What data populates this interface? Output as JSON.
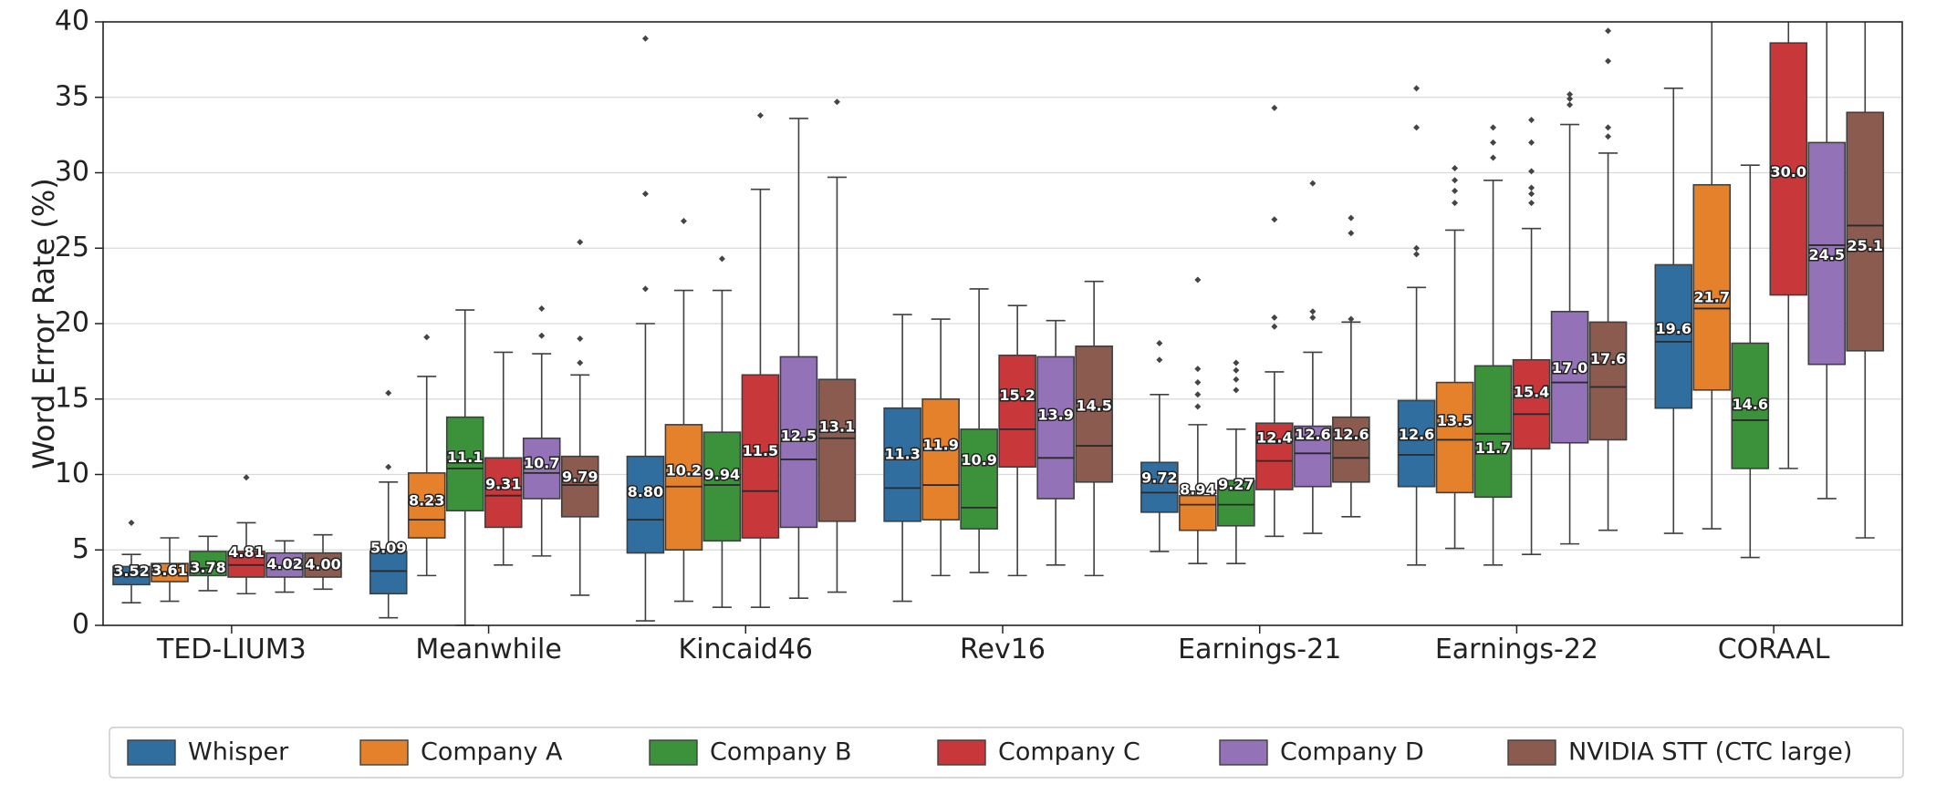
{
  "chart_data": {
    "type": "box",
    "title": "",
    "xlabel": "",
    "ylabel": "Word Error Rate (%)",
    "ylim": [
      0,
      40
    ],
    "yticks": [
      0,
      5,
      10,
      15,
      20,
      25,
      30,
      35,
      40
    ],
    "grid": "horizontal",
    "legend_position": "bottom",
    "categories": [
      "TED-LIUM3",
      "Meanwhile",
      "Kincaid46",
      "Rev16",
      "Earnings-21",
      "Earnings-22",
      "CORAAL"
    ],
    "series": [
      {
        "name": "Whisper",
        "color": "#2f6e9e",
        "boxes": [
          {
            "q1": 2.7,
            "median": 3.3,
            "q3": 3.9,
            "wlo": 1.5,
            "whi": 4.7,
            "label": "3.52",
            "outliers": [
              6.8
            ]
          },
          {
            "q1": 2.1,
            "median": 3.6,
            "q3": 4.9,
            "wlo": 0.5,
            "whi": 9.5,
            "label": "5.09",
            "outliers": [
              10.5,
              15.4
            ]
          },
          {
            "q1": 4.8,
            "median": 7.0,
            "q3": 11.2,
            "wlo": 0.3,
            "whi": 20.0,
            "label": "8.80",
            "outliers": [
              22.3,
              28.6,
              38.9
            ]
          },
          {
            "q1": 6.9,
            "median": 9.1,
            "q3": 14.4,
            "wlo": 1.6,
            "whi": 20.6,
            "label": "11.3",
            "outliers": []
          },
          {
            "q1": 7.5,
            "median": 8.8,
            "q3": 10.8,
            "wlo": 4.9,
            "whi": 15.3,
            "label": "9.72",
            "outliers": [
              17.6,
              18.7
            ]
          },
          {
            "q1": 9.2,
            "median": 11.3,
            "q3": 14.9,
            "wlo": 4.0,
            "whi": 22.4,
            "label": "12.6",
            "outliers": [
              24.6,
              25.0,
              33.0,
              35.6
            ]
          },
          {
            "q1": 14.4,
            "median": 18.8,
            "q3": 23.9,
            "wlo": 6.1,
            "whi": 35.6,
            "label": "19.6",
            "outliers": []
          }
        ]
      },
      {
        "name": "Company A",
        "color": "#e5812b",
        "boxes": [
          {
            "q1": 2.9,
            "median": 3.4,
            "q3": 4.1,
            "wlo": 1.6,
            "whi": 5.8,
            "label": "3.61",
            "outliers": []
          },
          {
            "q1": 5.8,
            "median": 7.0,
            "q3": 10.1,
            "wlo": 3.3,
            "whi": 16.5,
            "label": "8.23",
            "outliers": [
              19.1
            ]
          },
          {
            "q1": 5.0,
            "median": 9.2,
            "q3": 13.3,
            "wlo": 1.6,
            "whi": 22.2,
            "label": "10.2",
            "outliers": [
              26.8
            ]
          },
          {
            "q1": 7.0,
            "median": 9.3,
            "q3": 15.0,
            "wlo": 3.3,
            "whi": 20.3,
            "label": "11.9",
            "outliers": []
          },
          {
            "q1": 6.3,
            "median": 8.0,
            "q3": 8.6,
            "wlo": 4.1,
            "whi": 13.3,
            "label": "8.94",
            "outliers": [
              14.5,
              15.3,
              16.1,
              17.0,
              22.9
            ]
          },
          {
            "q1": 8.8,
            "median": 12.3,
            "q3": 16.1,
            "wlo": 5.1,
            "whi": 26.2,
            "label": "13.5",
            "outliers": [
              28.0,
              28.8,
              29.5,
              30.3
            ]
          },
          {
            "q1": 15.6,
            "median": 21.0,
            "q3": 29.2,
            "wlo": 6.4,
            "whi": 40.0,
            "label": "21.7",
            "outliers": []
          }
        ]
      },
      {
        "name": "Company B",
        "color": "#3b923b",
        "boxes": [
          {
            "q1": 3.3,
            "median": 3.8,
            "q3": 4.9,
            "wlo": 2.3,
            "whi": 5.9,
            "label": "3.78",
            "outliers": []
          },
          {
            "q1": 7.6,
            "median": 10.4,
            "q3": 13.8,
            "wlo": 0.0,
            "whi": 20.9,
            "label": "11.1",
            "outliers": []
          },
          {
            "q1": 5.6,
            "median": 9.3,
            "q3": 12.8,
            "wlo": 1.2,
            "whi": 22.2,
            "label": "9.94",
            "outliers": [
              24.3
            ]
          },
          {
            "q1": 6.4,
            "median": 7.8,
            "q3": 13.0,
            "wlo": 3.5,
            "whi": 22.3,
            "label": "10.9",
            "outliers": []
          },
          {
            "q1": 6.6,
            "median": 8.0,
            "q3": 9.6,
            "wlo": 4.1,
            "whi": 13.0,
            "label": "9.27",
            "outliers": [
              15.6,
              16.3,
              16.9,
              17.4
            ]
          },
          {
            "q1": 8.5,
            "median": 12.7,
            "q3": 17.2,
            "wlo": 4.0,
            "whi": 29.5,
            "label": "11.7",
            "outliers": [
              31.0,
              32.0,
              33.0
            ]
          },
          {
            "q1": 10.4,
            "median": 13.6,
            "q3": 18.7,
            "wlo": 4.5,
            "whi": 30.5,
            "label": "14.6",
            "outliers": []
          }
        ]
      },
      {
        "name": "Company C",
        "color": "#c8383a",
        "boxes": [
          {
            "q1": 3.2,
            "median": 4.0,
            "q3": 4.9,
            "wlo": 2.1,
            "whi": 6.8,
            "label": "4.81",
            "outliers": [
              9.8
            ]
          },
          {
            "q1": 6.5,
            "median": 8.6,
            "q3": 11.1,
            "wlo": 4.0,
            "whi": 18.1,
            "label": "9.31",
            "outliers": []
          },
          {
            "q1": 5.8,
            "median": 8.9,
            "q3": 16.6,
            "wlo": 1.2,
            "whi": 28.9,
            "label": "11.5",
            "outliers": [
              33.8
            ]
          },
          {
            "q1": 10.5,
            "median": 13.0,
            "q3": 17.9,
            "wlo": 3.3,
            "whi": 21.2,
            "label": "15.2",
            "outliers": []
          },
          {
            "q1": 9.0,
            "median": 10.9,
            "q3": 13.4,
            "wlo": 5.9,
            "whi": 16.8,
            "label": "12.4",
            "outliers": [
              19.8,
              20.4,
              26.9,
              34.3
            ]
          },
          {
            "q1": 11.7,
            "median": 14.0,
            "q3": 17.6,
            "wlo": 4.7,
            "whi": 26.3,
            "label": "15.4",
            "outliers": [
              28.0,
              28.6,
              29.0,
              30.1,
              32.0,
              33.5
            ]
          },
          {
            "q1": 21.9,
            "median": 29.8,
            "q3": 38.6,
            "wlo": 10.4,
            "whi": 40.0,
            "label": "30.0",
            "outliers": []
          }
        ]
      },
      {
        "name": "Company D",
        "color": "#9372b8",
        "boxes": [
          {
            "q1": 3.2,
            "median": 3.9,
            "q3": 4.8,
            "wlo": 2.2,
            "whi": 5.6,
            "label": "4.02",
            "outliers": []
          },
          {
            "q1": 8.4,
            "median": 10.1,
            "q3": 12.4,
            "wlo": 4.6,
            "whi": 18.0,
            "label": "10.7",
            "outliers": [
              19.2,
              21.0
            ]
          },
          {
            "q1": 6.5,
            "median": 11.0,
            "q3": 17.8,
            "wlo": 1.8,
            "whi": 33.6,
            "label": "12.5",
            "outliers": []
          },
          {
            "q1": 8.4,
            "median": 11.1,
            "q3": 17.8,
            "wlo": 4.0,
            "whi": 20.2,
            "label": "13.9",
            "outliers": []
          },
          {
            "q1": 9.2,
            "median": 11.4,
            "q3": 13.2,
            "wlo": 6.1,
            "whi": 18.1,
            "label": "12.6",
            "outliers": [
              20.4,
              20.8,
              29.3
            ]
          },
          {
            "q1": 12.1,
            "median": 16.1,
            "q3": 20.8,
            "wlo": 5.4,
            "whi": 33.2,
            "label": "17.0",
            "outliers": [
              34.5,
              34.9,
              35.2
            ]
          },
          {
            "q1": 17.3,
            "median": 25.2,
            "q3": 32.0,
            "wlo": 8.4,
            "whi": 40.0,
            "label": "24.5",
            "outliers": []
          }
        ]
      },
      {
        "name": "NVIDIA STT (CTC large)",
        "color": "#8b5b4f",
        "boxes": [
          {
            "q1": 3.2,
            "median": 3.9,
            "q3": 4.8,
            "wlo": 2.4,
            "whi": 6.0,
            "label": "4.00",
            "outliers": []
          },
          {
            "q1": 7.2,
            "median": 9.3,
            "q3": 11.2,
            "wlo": 2.0,
            "whi": 16.6,
            "label": "9.79",
            "outliers": [
              17.4,
              19.0,
              25.4
            ]
          },
          {
            "q1": 6.9,
            "median": 12.4,
            "q3": 16.3,
            "wlo": 2.2,
            "whi": 29.7,
            "label": "13.1",
            "outliers": [
              34.7
            ]
          },
          {
            "q1": 9.5,
            "median": 11.9,
            "q3": 18.5,
            "wlo": 3.3,
            "whi": 22.8,
            "label": "14.5",
            "outliers": []
          },
          {
            "q1": 9.5,
            "median": 11.1,
            "q3": 13.8,
            "wlo": 7.2,
            "whi": 20.1,
            "label": "12.6",
            "outliers": [
              20.3,
              26.0,
              27.0
            ]
          },
          {
            "q1": 12.3,
            "median": 15.8,
            "q3": 20.1,
            "wlo": 6.3,
            "whi": 31.3,
            "label": "17.6",
            "outliers": [
              32.4,
              33.0,
              37.4,
              39.4
            ]
          },
          {
            "q1": 18.2,
            "median": 26.5,
            "q3": 34.0,
            "wlo": 5.8,
            "whi": 40.0,
            "label": "25.1",
            "outliers": []
          }
        ]
      }
    ]
  }
}
